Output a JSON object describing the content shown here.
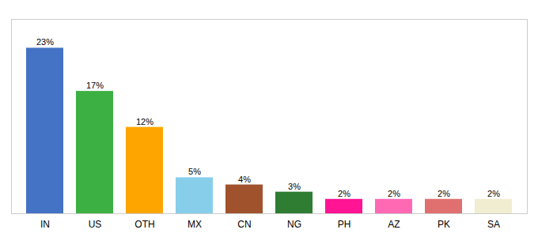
{
  "chart_data": {
    "type": "bar",
    "categories": [
      "IN",
      "US",
      "OTH",
      "MX",
      "CN",
      "NG",
      "PH",
      "AZ",
      "PK",
      "SA"
    ],
    "values": [
      23,
      17,
      12,
      5,
      4,
      3,
      2,
      2,
      2,
      2
    ],
    "value_labels": [
      "23%",
      "17%",
      "12%",
      "5%",
      "4%",
      "3%",
      "2%",
      "2%",
      "2%",
      "2%"
    ],
    "colors": [
      "#4472C4",
      "#3CB043",
      "#FFA500",
      "#87CEEB",
      "#A0522D",
      "#2E7D32",
      "#FF1493",
      "#FF69B4",
      "#E07070",
      "#F0EDD0"
    ],
    "ylim": [
      0,
      27
    ],
    "data_labels": true,
    "tick_labels": "x",
    "grid": false
  }
}
